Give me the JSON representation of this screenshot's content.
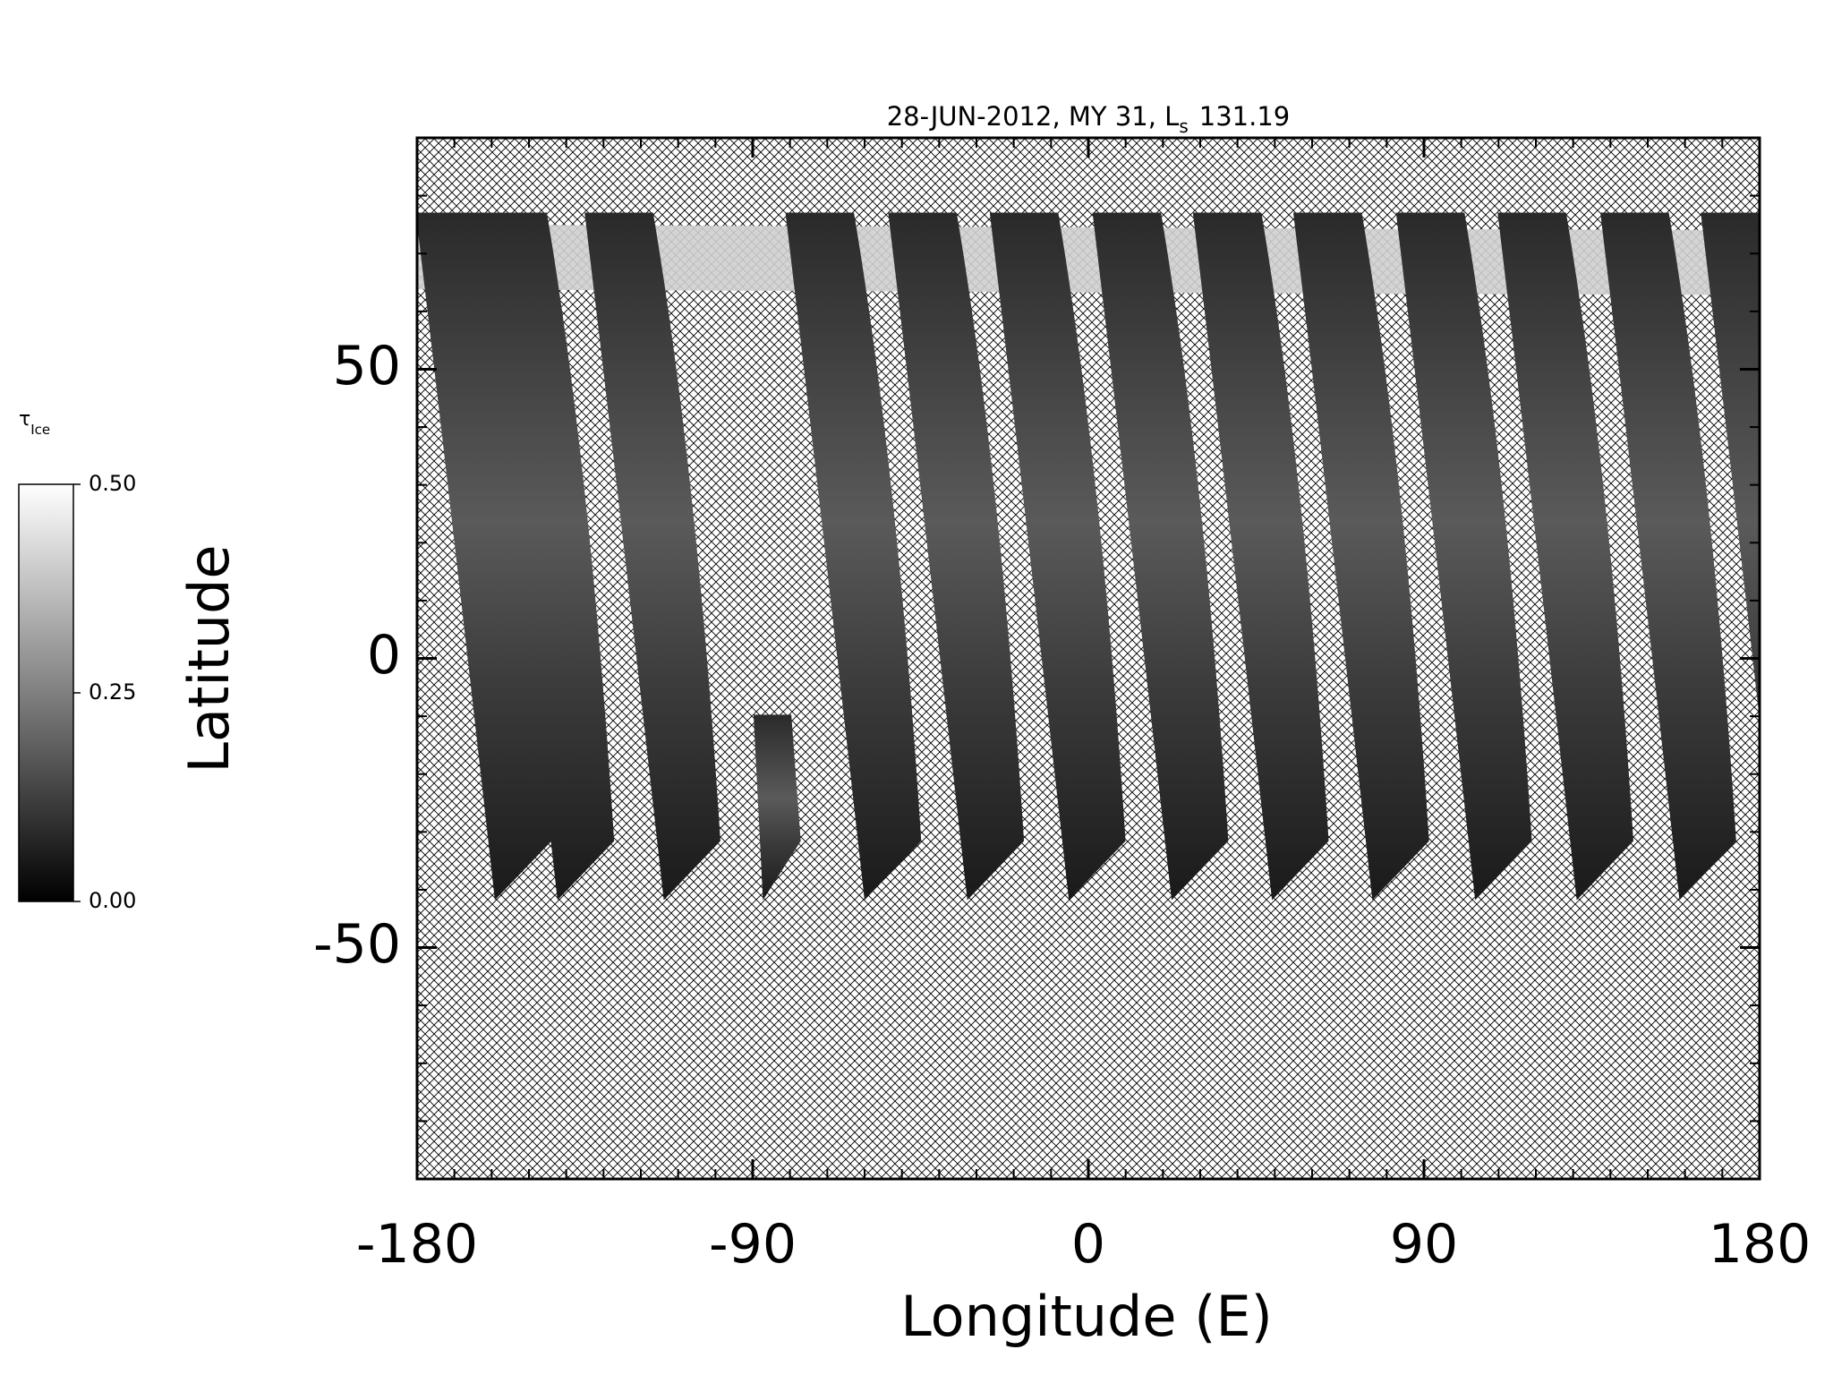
{
  "chart_data": {
    "type": "map",
    "title": "28-JUN-2012, MY 31,  L",
    "title_subscript": "s",
    "title_suffix": "131.19",
    "xlabel": "Longitude (E)",
    "ylabel": "Latitude",
    "xlim": [
      -180,
      180
    ],
    "xticks": [
      -180,
      -90,
      0,
      90,
      180
    ],
    "xminorticks": [
      -170,
      -160,
      -150,
      -140,
      -130,
      -120,
      -110,
      -100,
      -80,
      -70,
      -60,
      -50,
      -40,
      -30,
      -20,
      -10,
      10,
      20,
      30,
      40,
      50,
      60,
      70,
      80,
      100,
      110,
      120,
      130,
      140,
      150,
      160,
      170
    ],
    "ylim": [
      -90,
      90
    ],
    "yticks": [
      -50,
      0,
      50
    ],
    "yminorticks": [
      -80,
      -70,
      -60,
      -40,
      -30,
      -20,
      -10,
      10,
      20,
      30,
      40,
      60,
      70,
      80
    ],
    "colorbar": {
      "label": "τ",
      "label_subscript": "Ice",
      "lim": [
        0,
        0.5
      ],
      "ticks": [
        {
          "value": 0,
          "label": "0.00"
        },
        {
          "value": 0.25,
          "label": "0.25"
        },
        {
          "value": 0.5,
          "label": "0.50"
        }
      ]
    }
  }
}
